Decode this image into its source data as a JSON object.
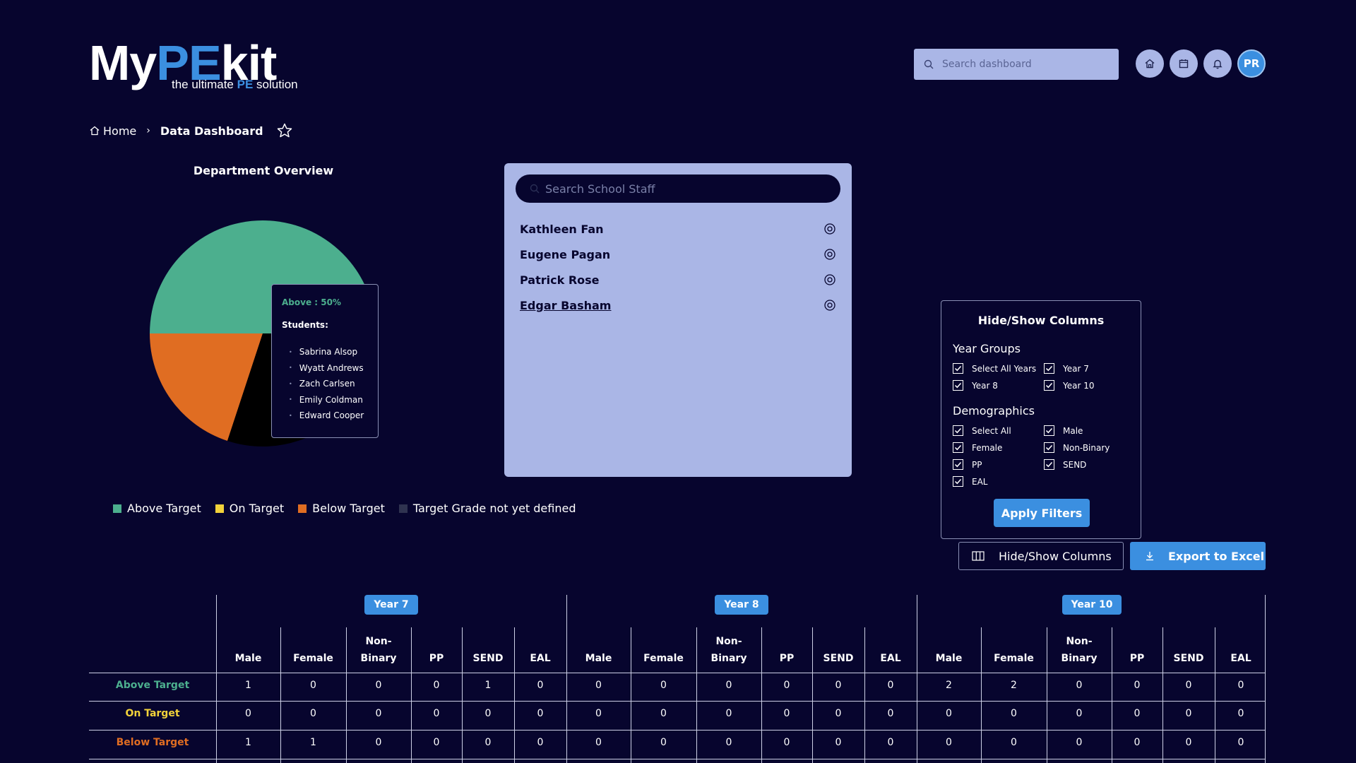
{
  "brand": {
    "logo_part1": "My",
    "logo_part2": "PE",
    "logo_part3": "kit",
    "tagline_pre": "the ultimate ",
    "tagline_bold": "PE",
    "tagline_post": " solution"
  },
  "header": {
    "search_placeholder": "Search dashboard",
    "avatar_initials": "PR"
  },
  "breadcrumb": {
    "home": "Home",
    "current": "Data Dashboard"
  },
  "department": {
    "title": "Department Overview",
    "tooltip": {
      "title": "Above : 50%",
      "subtitle": "Students:",
      "students": [
        "Sabrina Alsop",
        "Wyatt Andrews",
        "Zach Carlsen",
        "Emily Coldman",
        "Edward Cooper"
      ]
    },
    "legend": [
      {
        "label": "Above Target",
        "color": "#4caf8e"
      },
      {
        "label": "On Target",
        "color": "#f2d23a"
      },
      {
        "label": "Below Target",
        "color": "#e06d22"
      },
      {
        "label": "Target Grade not yet defined",
        "color": "#2f3350"
      }
    ]
  },
  "staff": {
    "search_placeholder": "Search School Staff",
    "members": [
      "Kathleen Fan",
      "Eugene Pagan",
      "Patrick Rose",
      "Edgar Basham"
    ]
  },
  "columns_panel": {
    "title": "Hide/Show Columns",
    "year_groups_label": "Year Groups",
    "year_groups": [
      "Select All Years",
      "Year 7",
      "Year 8",
      "Year 10"
    ],
    "demographics_label": "Demographics",
    "demographics": [
      "Select All",
      "Male",
      "Female",
      "Non-Binary",
      "PP",
      "SEND",
      "EAL"
    ],
    "apply_label": "Apply Filters"
  },
  "actions": {
    "toggle_columns": "Hide/Show Columns",
    "export": "Export to Excel"
  },
  "table": {
    "years": [
      "Year 7",
      "Year 8",
      "Year 10"
    ],
    "columns": [
      "Male",
      "Female",
      "Non-\nBinary",
      "PP",
      "SEND",
      "EAL"
    ],
    "rows": [
      {
        "label": "Above Target",
        "color": "#4caf8e",
        "values": [
          1,
          0,
          0,
          0,
          1,
          0,
          0,
          0,
          0,
          0,
          0,
          0,
          2,
          2,
          0,
          0,
          0,
          0
        ]
      },
      {
        "label": "On Target",
        "color": "#f2d23a",
        "values": [
          0,
          0,
          0,
          0,
          0,
          0,
          0,
          0,
          0,
          0,
          0,
          0,
          0,
          0,
          0,
          0,
          0,
          0
        ]
      },
      {
        "label": "Below Target",
        "color": "#e06d22",
        "values": [
          1,
          1,
          0,
          0,
          0,
          0,
          0,
          0,
          0,
          0,
          0,
          0,
          0,
          0,
          0,
          0,
          0,
          0
        ]
      }
    ]
  }
}
